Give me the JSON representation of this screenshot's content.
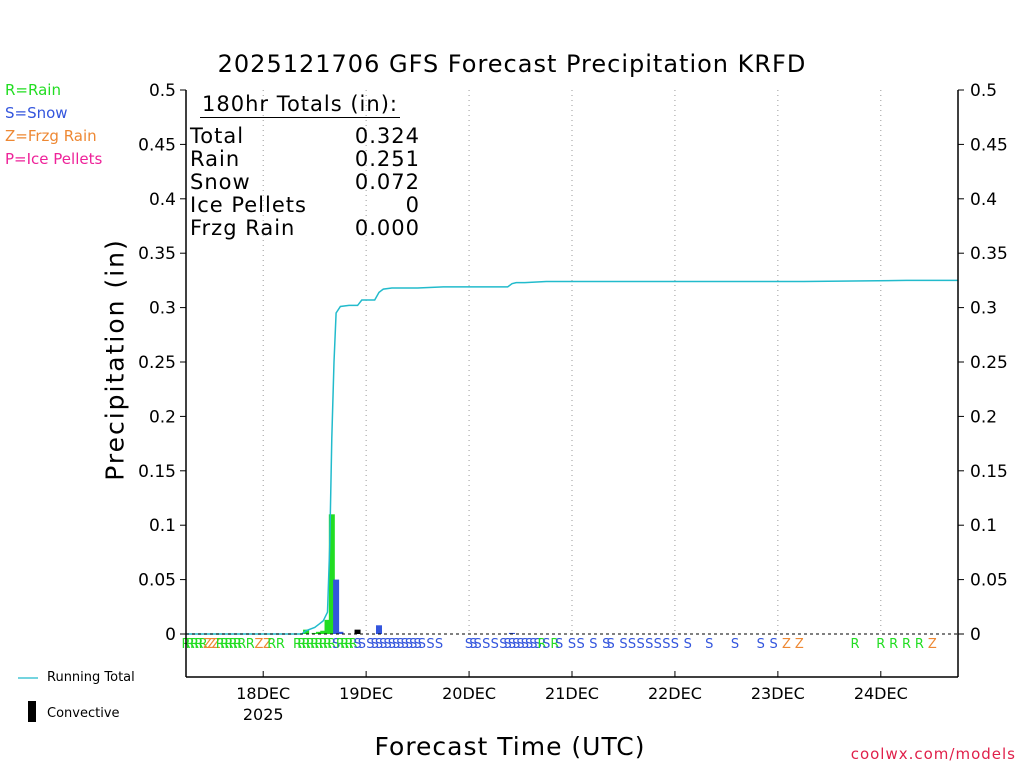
{
  "title": "2025121706 GFS Forecast Precipitation KRFD",
  "credit": "coolwx.com/models",
  "legend_types": [
    {
      "text": "R=Rain",
      "color": "#22dd22"
    },
    {
      "text": "S=Snow",
      "color": "#3355dd"
    },
    {
      "text": "Z=Frzg Rain",
      "color": "#ee8833"
    },
    {
      "text": "P=Ice Pellets",
      "color": "#ee2299"
    }
  ],
  "legend_series": {
    "running_total": "Running Total",
    "convective": "Convective",
    "running_total_color": "#22bbcc",
    "convective_color": "#000000"
  },
  "totals": {
    "heading": "180hr Totals (in):",
    "rows": [
      {
        "label": "Total",
        "value": "0.324"
      },
      {
        "label": "Rain",
        "value": "0.251"
      },
      {
        "label": "Snow",
        "value": "0.072"
      },
      {
        "label": "Ice Pellets",
        "value": "0"
      },
      {
        "label": "Frzg Rain",
        "value": "0.000"
      }
    ]
  },
  "chart_data": {
    "type": "bar",
    "title": "2025121706 GFS Forecast Precipitation KRFD",
    "xlabel": "Forecast Time (UTC)",
    "ylabel": "Precipitation (in)",
    "ylim": [
      0,
      0.5
    ],
    "yticks": [
      0,
      0.05,
      0.1,
      0.15,
      0.2,
      0.25,
      0.3,
      0.35,
      0.4,
      0.45,
      0.5
    ],
    "ytick_labels": [
      "0",
      "0.05",
      "0.1",
      "0.15",
      "0.2",
      "0.25",
      "0.3",
      "0.35",
      "0.4",
      "0.45",
      "0.5"
    ],
    "x_unit": "forecast hour",
    "xlim": [
      0,
      180
    ],
    "xticks": [
      {
        "hour": 18,
        "label": "18DEC",
        "sublabel": "2025"
      },
      {
        "hour": 42,
        "label": "19DEC",
        "sublabel": ""
      },
      {
        "hour": 66,
        "label": "20DEC",
        "sublabel": ""
      },
      {
        "hour": 90,
        "label": "21DEC",
        "sublabel": ""
      },
      {
        "hour": 114,
        "label": "22DEC",
        "sublabel": ""
      },
      {
        "hour": 138,
        "label": "23DEC",
        "sublabel": ""
      },
      {
        "hour": 162,
        "label": "24DEC",
        "sublabel": ""
      }
    ],
    "grid": "vertical-dotted",
    "bars": [
      {
        "hour": 28,
        "value": 0.004,
        "type": "R"
      },
      {
        "hour": 30,
        "value": 0.001,
        "type": "R"
      },
      {
        "hour": 31,
        "value": 0.002,
        "type": "R"
      },
      {
        "hour": 32,
        "value": 0.003,
        "type": "R"
      },
      {
        "hour": 33,
        "value": 0.013,
        "type": "R"
      },
      {
        "hour": 34,
        "value": 0.11,
        "type": "R"
      },
      {
        "hour": 35,
        "value": 0.05,
        "type": "S"
      },
      {
        "hour": 36,
        "value": 0.002,
        "type": "S"
      },
      {
        "hour": 40,
        "value": 0.004,
        "type": "Conv"
      },
      {
        "hour": 45,
        "value": 0.008,
        "type": "S"
      },
      {
        "hour": 76,
        "value": 0.001,
        "type": "S"
      }
    ],
    "running_total": {
      "name": "Running Total",
      "x": [
        0,
        27,
        28,
        30,
        31,
        32,
        33,
        33.5,
        34,
        34.5,
        35,
        36,
        38,
        40,
        41,
        42,
        44,
        45,
        46,
        48,
        54,
        60,
        66,
        72,
        75,
        76,
        77,
        79,
        84,
        96,
        120,
        144,
        168,
        180
      ],
      "y": [
        0,
        0,
        0.003,
        0.006,
        0.009,
        0.012,
        0.02,
        0.08,
        0.18,
        0.25,
        0.295,
        0.301,
        0.302,
        0.302,
        0.307,
        0.307,
        0.307,
        0.314,
        0.317,
        0.318,
        0.318,
        0.319,
        0.319,
        0.319,
        0.319,
        0.322,
        0.323,
        0.323,
        0.324,
        0.324,
        0.324,
        0.324,
        0.325,
        0.325
      ]
    },
    "ptype_labels": [
      {
        "hour": 0,
        "type": "R"
      },
      {
        "hour": 1,
        "type": "R"
      },
      {
        "hour": 2,
        "type": "R"
      },
      {
        "hour": 3,
        "type": "R"
      },
      {
        "hour": 4,
        "type": "R"
      },
      {
        "hour": 5,
        "type": "Z"
      },
      {
        "hour": 6,
        "type": "Z"
      },
      {
        "hour": 7,
        "type": "Z"
      },
      {
        "hour": 8,
        "type": "R"
      },
      {
        "hour": 9,
        "type": "R"
      },
      {
        "hour": 10,
        "type": "R"
      },
      {
        "hour": 11,
        "type": "R"
      },
      {
        "hour": 12,
        "type": "R"
      },
      {
        "hour": 13,
        "type": "R"
      },
      {
        "hour": 15,
        "type": "R"
      },
      {
        "hour": 17,
        "type": "Z"
      },
      {
        "hour": 19,
        "type": "Z"
      },
      {
        "hour": 20,
        "type": "R"
      },
      {
        "hour": 22,
        "type": "R"
      },
      {
        "hour": 26,
        "type": "R"
      },
      {
        "hour": 27,
        "type": "R"
      },
      {
        "hour": 28,
        "type": "R"
      },
      {
        "hour": 29,
        "type": "R"
      },
      {
        "hour": 30,
        "type": "R"
      },
      {
        "hour": 31,
        "type": "R"
      },
      {
        "hour": 32,
        "type": "R"
      },
      {
        "hour": 33,
        "type": "R"
      },
      {
        "hour": 34,
        "type": "R"
      },
      {
        "hour": 35,
        "type": "S"
      },
      {
        "hour": 36,
        "type": "R"
      },
      {
        "hour": 37,
        "type": "R"
      },
      {
        "hour": 38,
        "type": "R"
      },
      {
        "hour": 39,
        "type": "R"
      },
      {
        "hour": 40,
        "type": "S"
      },
      {
        "hour": 41,
        "type": "S"
      },
      {
        "hour": 43,
        "type": "S"
      },
      {
        "hour": 44,
        "type": "S"
      },
      {
        "hour": 45,
        "type": "S"
      },
      {
        "hour": 46,
        "type": "S"
      },
      {
        "hour": 47,
        "type": "S"
      },
      {
        "hour": 48,
        "type": "S"
      },
      {
        "hour": 49,
        "type": "S"
      },
      {
        "hour": 50,
        "type": "S"
      },
      {
        "hour": 51,
        "type": "S"
      },
      {
        "hour": 52,
        "type": "S"
      },
      {
        "hour": 53,
        "type": "S"
      },
      {
        "hour": 54,
        "type": "S"
      },
      {
        "hour": 55,
        "type": "S"
      },
      {
        "hour": 57,
        "type": "S"
      },
      {
        "hour": 59,
        "type": "S"
      },
      {
        "hour": 66,
        "type": "S"
      },
      {
        "hour": 67,
        "type": "S"
      },
      {
        "hour": 68,
        "type": "S"
      },
      {
        "hour": 70,
        "type": "S"
      },
      {
        "hour": 72,
        "type": "S"
      },
      {
        "hour": 74,
        "type": "S"
      },
      {
        "hour": 75,
        "type": "S"
      },
      {
        "hour": 76,
        "type": "S"
      },
      {
        "hour": 77,
        "type": "S"
      },
      {
        "hour": 78,
        "type": "S"
      },
      {
        "hour": 79,
        "type": "S"
      },
      {
        "hour": 80,
        "type": "S"
      },
      {
        "hour": 81,
        "type": "S"
      },
      {
        "hour": 82,
        "type": "S"
      },
      {
        "hour": 83,
        "type": "R"
      },
      {
        "hour": 84,
        "type": "S"
      },
      {
        "hour": 86,
        "type": "R"
      },
      {
        "hour": 87,
        "type": "S"
      },
      {
        "hour": 90,
        "type": "S"
      },
      {
        "hour": 92,
        "type": "S"
      },
      {
        "hour": 95,
        "type": "S"
      },
      {
        "hour": 98,
        "type": "S"
      },
      {
        "hour": 99,
        "type": "S"
      },
      {
        "hour": 102,
        "type": "S"
      },
      {
        "hour": 104,
        "type": "S"
      },
      {
        "hour": 106,
        "type": "S"
      },
      {
        "hour": 108,
        "type": "S"
      },
      {
        "hour": 110,
        "type": "S"
      },
      {
        "hour": 112,
        "type": "S"
      },
      {
        "hour": 114,
        "type": "S"
      },
      {
        "hour": 117,
        "type": "S"
      },
      {
        "hour": 122,
        "type": "S"
      },
      {
        "hour": 128,
        "type": "S"
      },
      {
        "hour": 134,
        "type": "S"
      },
      {
        "hour": 137,
        "type": "S"
      },
      {
        "hour": 140,
        "type": "Z"
      },
      {
        "hour": 143,
        "type": "Z"
      },
      {
        "hour": 156,
        "type": "R"
      },
      {
        "hour": 162,
        "type": "R"
      },
      {
        "hour": 165,
        "type": "R"
      },
      {
        "hour": 168,
        "type": "R"
      },
      {
        "hour": 171,
        "type": "R"
      },
      {
        "hour": 174,
        "type": "Z"
      }
    ]
  }
}
